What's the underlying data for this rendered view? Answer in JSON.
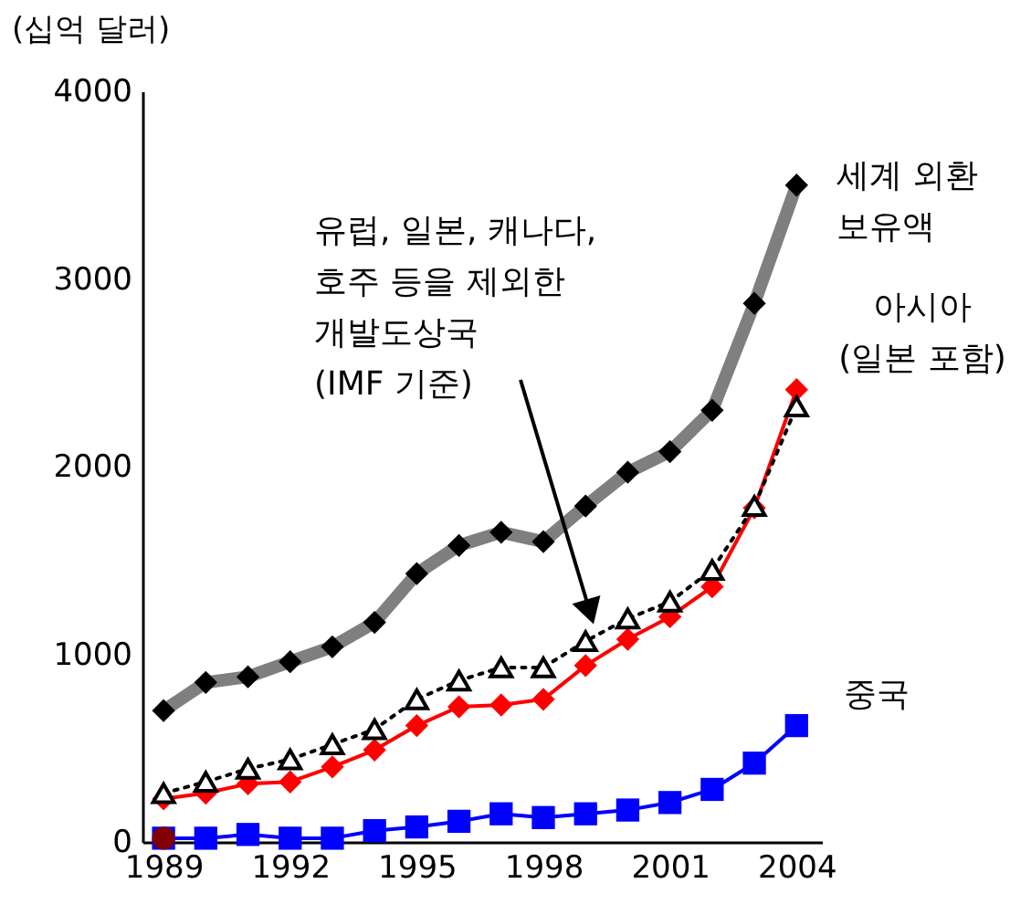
{
  "chart_data": {
    "type": "line",
    "ylabel": "(십억 달러)",
    "x": [
      1989,
      1990,
      1991,
      1992,
      1993,
      1994,
      1995,
      1996,
      1997,
      1998,
      1999,
      2000,
      2001,
      2002,
      2003,
      2004
    ],
    "xlim": [
      1988.5,
      2004.6
    ],
    "xticks": [
      1989,
      1992,
      1995,
      1998,
      2001,
      2004
    ],
    "ylim": [
      0,
      4000
    ],
    "yticks": [
      0,
      1000,
      2000,
      3000,
      4000
    ],
    "grid": false,
    "series": [
      {
        "name": "세계 외환\n보유액",
        "color": "#000000",
        "marker": "diamond",
        "line_style": "solid",
        "values": [
          700,
          850,
          880,
          960,
          1040,
          1170,
          1430,
          1580,
          1650,
          1600,
          1790,
          1970,
          2080,
          2300,
          2870,
          3500
        ]
      },
      {
        "name": "아시아\n(일본 포함)",
        "color": "#ff0000",
        "marker": "diamond",
        "line_style": "solid",
        "values": [
          230,
          260,
          310,
          320,
          400,
          490,
          620,
          720,
          730,
          760,
          940,
          1080,
          1200,
          1360,
          1780,
          2410
        ]
      },
      {
        "name": "유럽, 일본, 캐나다,\n호주 등을 제외한\n개발도상국\n(IMF 기준)",
        "color": "#000000",
        "marker": "triangle",
        "line_style": "dotted",
        "values": [
          260,
          320,
          390,
          440,
          520,
          600,
          760,
          860,
          930,
          930,
          1070,
          1190,
          1280,
          1450,
          1790,
          2320
        ]
      },
      {
        "name": "중국",
        "color": "#0000ff",
        "marker": "square",
        "line_style": "solid",
        "values": [
          20,
          20,
          40,
          20,
          20,
          60,
          80,
          110,
          150,
          130,
          150,
          170,
          210,
          280,
          420,
          620
        ]
      },
      {
        "type": "scatter",
        "color": "#800000",
        "marker": "circle",
        "x": [
          1989
        ],
        "values": [
          20
        ]
      }
    ]
  }
}
